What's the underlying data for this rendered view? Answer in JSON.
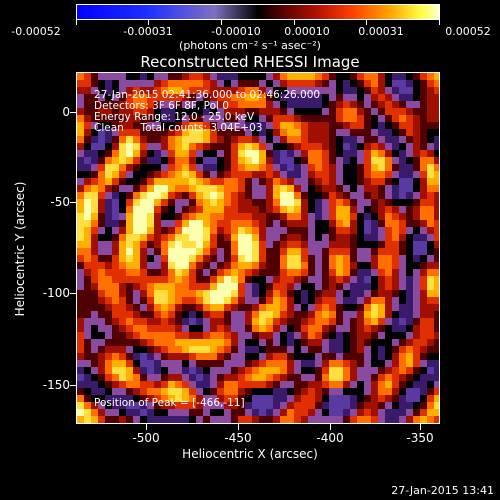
{
  "colorbar": {
    "labels": [
      "-0.00052",
      "-0.00031",
      "-0.00010",
      "0.00010",
      "0.00031",
      "0.00052"
    ],
    "units": "(photons cm⁻² s⁻¹ asec⁻²)"
  },
  "title": "Reconstructed RHESSI Image",
  "annotations": {
    "line1": "27-Jan-2015 02:41:36.000 to 02:46:26.000",
    "line2": "Detectors: 3F 6F 8F, Pol 0",
    "line3": "Energy Range: 12.0 - 25.0 keV",
    "line4": "Clean     Total counts: 3.04E+03",
    "peak": "Position of Peak = [-466,-11]"
  },
  "axes": {
    "xlabel": "Heliocentric X (arcsec)",
    "ylabel": "Heliocentric Y (arcsec)",
    "xticks": [
      "-500",
      "-450",
      "-400",
      "-350"
    ],
    "yticks": [
      "0",
      "-50",
      "-100",
      "-150"
    ]
  },
  "timestamp": "27-Jan-2015 13:41",
  "colors": {
    "background": "#000000",
    "palette": [
      "#000000",
      "#3a1a6a",
      "#5a3aa0",
      "#8a4aa0",
      "#500000",
      "#a01000",
      "#e03000",
      "#ff7000",
      "#ffb000",
      "#ffe040",
      "#ffffb0"
    ]
  }
}
